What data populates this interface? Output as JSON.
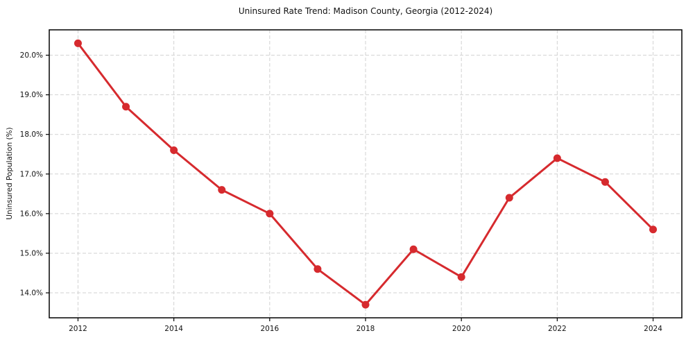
{
  "window": {
    "background_color": "#ffffff"
  },
  "chart_data": {
    "type": "line",
    "title": "Uninsured Rate Trend: Madison County, Georgia (2012-2024)",
    "xlabel": "",
    "ylabel": "Uninsured Population (%)",
    "series": [
      {
        "name": "Uninsured Population (%)",
        "x": [
          2012,
          2013,
          2014,
          2015,
          2016,
          2017,
          2018,
          2019,
          2020,
          2021,
          2022,
          2023,
          2024
        ],
        "values": [
          20.3,
          18.7,
          17.6,
          16.6,
          16.0,
          14.6,
          13.7,
          15.1,
          14.4,
          16.4,
          17.4,
          16.8,
          15.6
        ]
      }
    ],
    "xlim": [
      2011.4,
      2024.6
    ],
    "ylim": [
      13.37,
      20.64
    ],
    "x_ticks": [
      2012,
      2014,
      2016,
      2018,
      2020,
      2022,
      2024
    ],
    "x_tick_labels": [
      "2012",
      "2014",
      "2016",
      "2018",
      "2020",
      "2022",
      "2024"
    ],
    "y_ticks": [
      14,
      15,
      16,
      17,
      18,
      19,
      20
    ],
    "y_tick_labels": [
      "14.0%",
      "15.0%",
      "16.0%",
      "17.0%",
      "18.0%",
      "19.0%",
      "20.0%"
    ],
    "grid": true,
    "grid_style": "dashed",
    "legend": "none",
    "line_color": "#d62a2e",
    "marker": "circle",
    "marker_color": "#d62a2e",
    "grid_color": "#d2d2d2",
    "spine_color": "#000000",
    "text_color": "#111111"
  }
}
